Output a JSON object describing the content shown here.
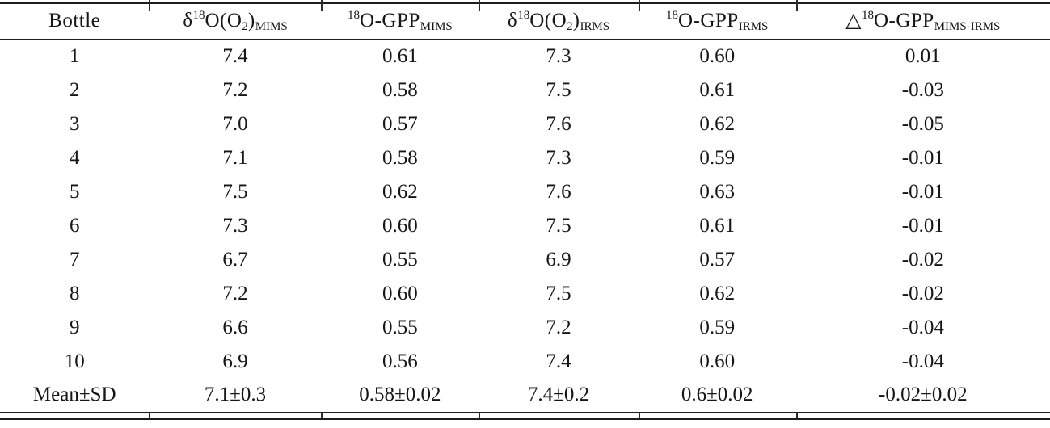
{
  "table": {
    "columns": [
      {
        "id": "bottle",
        "segments": [
          {
            "style": "normal",
            "text": "Bottle"
          }
        ]
      },
      {
        "id": "d18o-o2-mims",
        "segments": [
          {
            "style": "normal",
            "text": "δ"
          },
          {
            "style": "sup",
            "text": "18"
          },
          {
            "style": "normal",
            "text": "O(O"
          },
          {
            "style": "sub",
            "text": "2"
          },
          {
            "style": "normal",
            "text": ")"
          },
          {
            "style": "sub",
            "text": "MIMS"
          }
        ]
      },
      {
        "id": "18o-gpp-mims",
        "segments": [
          {
            "style": "sup",
            "text": "18"
          },
          {
            "style": "normal",
            "text": "O-GPP"
          },
          {
            "style": "sub",
            "text": "MIMS"
          }
        ]
      },
      {
        "id": "d18o-o2-irms",
        "segments": [
          {
            "style": "normal",
            "text": "δ"
          },
          {
            "style": "sup",
            "text": "18"
          },
          {
            "style": "normal",
            "text": "O(O"
          },
          {
            "style": "sub",
            "text": "2"
          },
          {
            "style": "normal",
            "text": ")"
          },
          {
            "style": "sub",
            "text": "IRMS"
          }
        ]
      },
      {
        "id": "18o-gpp-irms",
        "segments": [
          {
            "style": "sup",
            "text": "18"
          },
          {
            "style": "normal",
            "text": "O-GPP"
          },
          {
            "style": "sub",
            "text": "IRMS"
          }
        ]
      },
      {
        "id": "delta-18o-gpp-mims-irms",
        "segments": [
          {
            "style": "normal",
            "text": "△"
          },
          {
            "style": "sup",
            "text": "18"
          },
          {
            "style": "normal",
            "text": "O-GPP"
          },
          {
            "style": "sub",
            "text": "MIMS-IRMS"
          }
        ]
      }
    ],
    "rows": [
      [
        "1",
        "7.4",
        "0.61",
        "7.3",
        "0.60",
        "0.01"
      ],
      [
        "2",
        "7.2",
        "0.58",
        "7.5",
        "0.61",
        "-0.03"
      ],
      [
        "3",
        "7.0",
        "0.57",
        "7.6",
        "0.62",
        "-0.05"
      ],
      [
        "4",
        "7.1",
        "0.58",
        "7.3",
        "0.59",
        "-0.01"
      ],
      [
        "5",
        "7.5",
        "0.62",
        "7.6",
        "0.63",
        "-0.01"
      ],
      [
        "6",
        "7.3",
        "0.60",
        "7.5",
        "0.61",
        "-0.01"
      ],
      [
        "7",
        "6.7",
        "0.55",
        "6.9",
        "0.57",
        "-0.02"
      ],
      [
        "8",
        "7.2",
        "0.60",
        "7.5",
        "0.62",
        "-0.02"
      ],
      [
        "9",
        "6.6",
        "0.55",
        "7.2",
        "0.59",
        "-0.04"
      ],
      [
        "10",
        "6.9",
        "0.56",
        "7.4",
        "0.60",
        "-0.04"
      ]
    ],
    "summary_row": [
      "Mean±SD",
      "7.1±0.3",
      "0.58±0.02",
      "7.4±0.2",
      "0.6±0.02",
      "-0.02±0.02"
    ],
    "text_color": "#161616",
    "rule_color": "#1d1d1d"
  }
}
